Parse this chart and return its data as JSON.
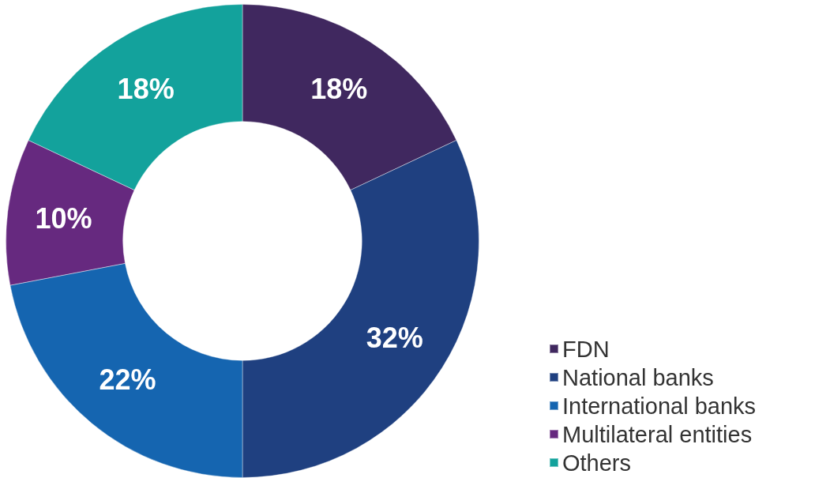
{
  "chart_data": {
    "type": "donut",
    "categories": [
      "FDN",
      "National banks",
      "International banks",
      "Multilateral entities",
      "Others"
    ],
    "values": [
      18,
      32,
      22,
      10,
      18
    ],
    "colors": [
      "#40285f",
      "#1f4080",
      "#1565b0",
      "#66297f",
      "#13a29c"
    ],
    "value_labels": [
      "18%",
      "32%",
      "22%",
      "10%",
      "18%"
    ],
    "legend": "bottom right"
  }
}
